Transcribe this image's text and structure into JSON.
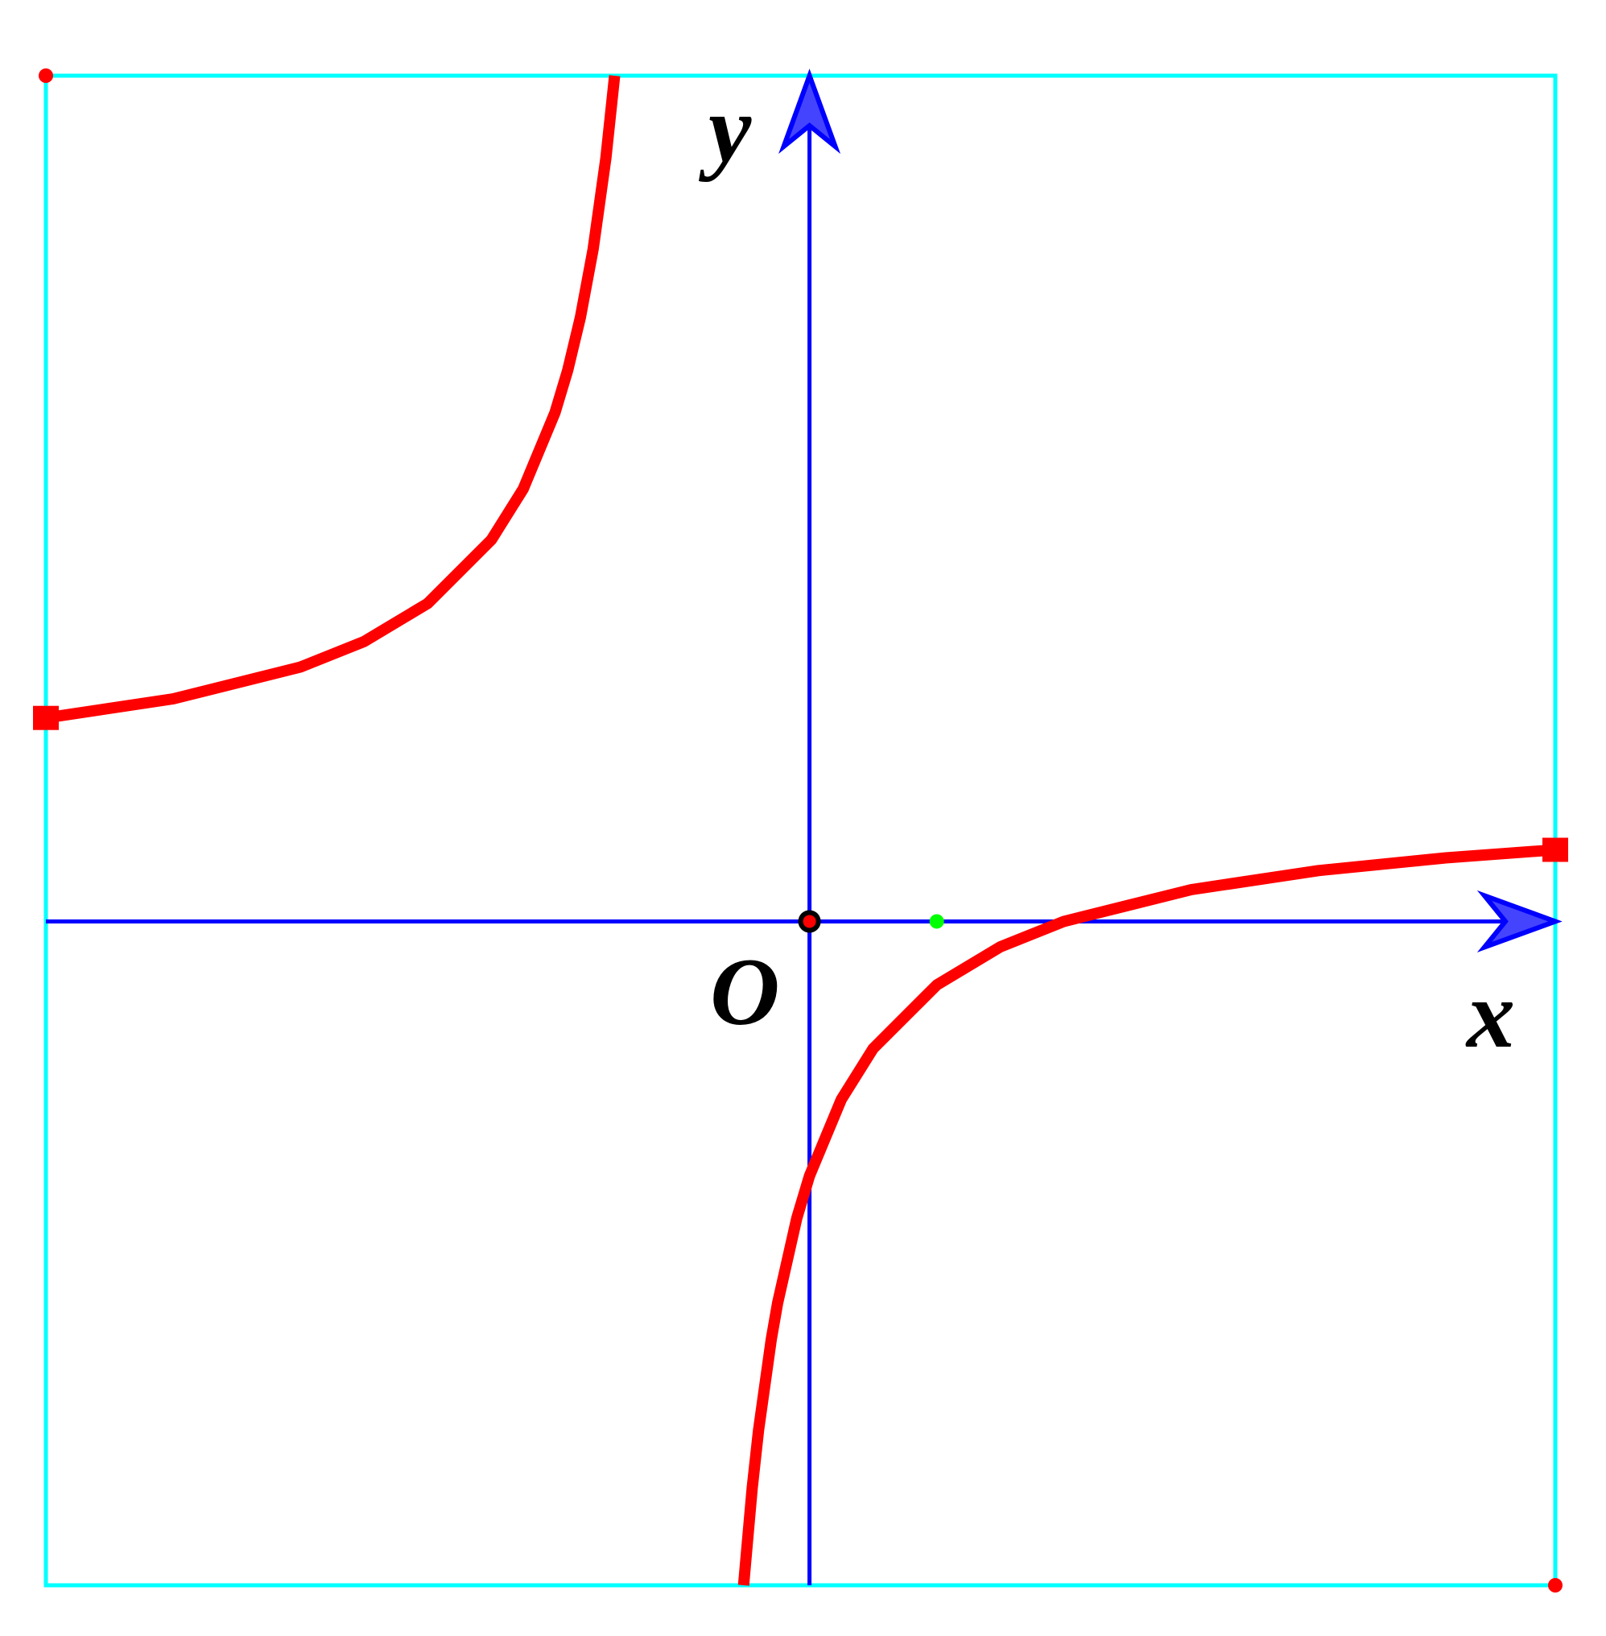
{
  "chart_data": {
    "type": "line",
    "title": "",
    "axis_labels": {
      "x": "x",
      "y": "y",
      "origin": "O"
    },
    "xlim": [
      -6.0,
      5.86
    ],
    "ylim": [
      -5.22,
      6.65
    ],
    "grid": false,
    "asymptotes": {
      "vertical_x": -1,
      "horizontal_y": 1
    },
    "series": [
      {
        "branch": "left",
        "x": [
          -6,
          -5,
          -4,
          -3.5,
          -3,
          -2.5,
          -2.25,
          -2,
          -1.9,
          -1.8,
          -1.7,
          -1.6,
          -1.531
        ],
        "y": [
          1.6,
          1.75,
          2,
          2.2,
          2.5,
          3,
          3.4,
          4,
          4.333,
          4.75,
          5.286,
          6,
          6.65
        ]
      },
      {
        "branch": "right",
        "x": [
          -0.518,
          -0.45,
          -0.4,
          -0.3,
          -0.25,
          -0.1,
          0,
          0.25,
          0.5,
          1,
          1.5,
          2,
          3,
          4,
          5,
          5.86
        ],
        "y": [
          -5.22,
          -4.455,
          -4,
          -3.286,
          -3,
          -2.333,
          -2,
          -1.4,
          -1,
          -0.5,
          -0.2,
          0,
          0.25,
          0.4,
          0.5,
          0.563
        ]
      }
    ],
    "points": [
      {
        "name": "origin",
        "x": 0,
        "y": 0,
        "color": "#ff0000"
      },
      {
        "name": "unit-point",
        "x": 1,
        "y": 0,
        "color": "#00ff00"
      },
      {
        "name": "frame-corner-top-left",
        "x": -6.0,
        "y": 6.65,
        "color": "#ff0000"
      },
      {
        "name": "frame-corner-bottom-right",
        "x": 5.86,
        "y": -5.22,
        "color": "#ff0000"
      }
    ],
    "colors": {
      "curve": "#ff0000",
      "axes": "#0000ff",
      "frame": "#00ffff",
      "arrow_fill": "#4444ff"
    }
  }
}
